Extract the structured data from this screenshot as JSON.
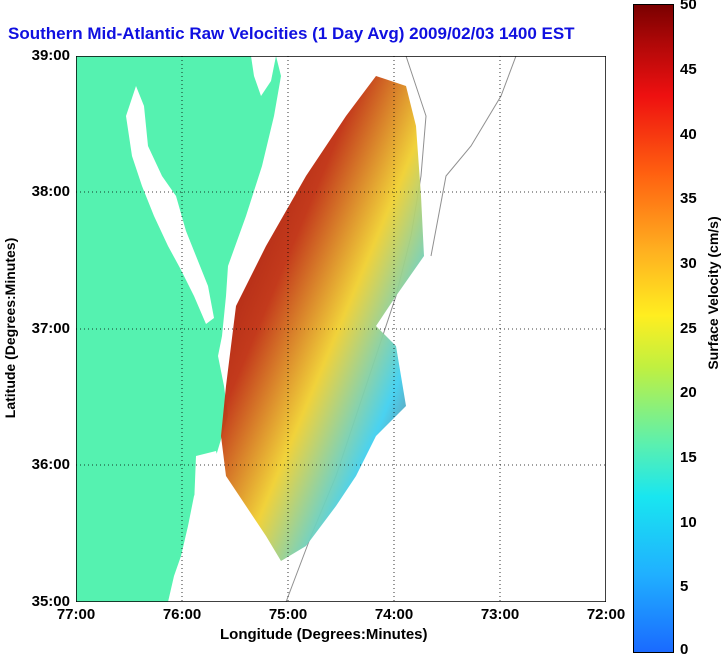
{
  "title": "Southern Mid-Atlantic Raw Velocities (1 Day Avg) 2009/02/03 1400 EST",
  "xlabel": "Longitude (Degrees:Minutes)",
  "ylabel": "Latitude (Degrees:Minutes)",
  "x_ticks": [
    "77:00",
    "76:00",
    "75:00",
    "74:00",
    "73:00",
    "72:00"
  ],
  "y_ticks": [
    "39:00",
    "38:00",
    "37:00",
    "36:00",
    "35:00"
  ],
  "colorbar": {
    "label": "Surface Velocity (cm/s)",
    "ticks": [
      "50",
      "45",
      "40",
      "35",
      "30",
      "25",
      "20",
      "15",
      "10",
      "5",
      "0"
    ],
    "range": [
      0,
      50
    ]
  },
  "colors": {
    "land": "#55f2b0",
    "title": "#1010e0",
    "isobath": "#909090"
  }
}
